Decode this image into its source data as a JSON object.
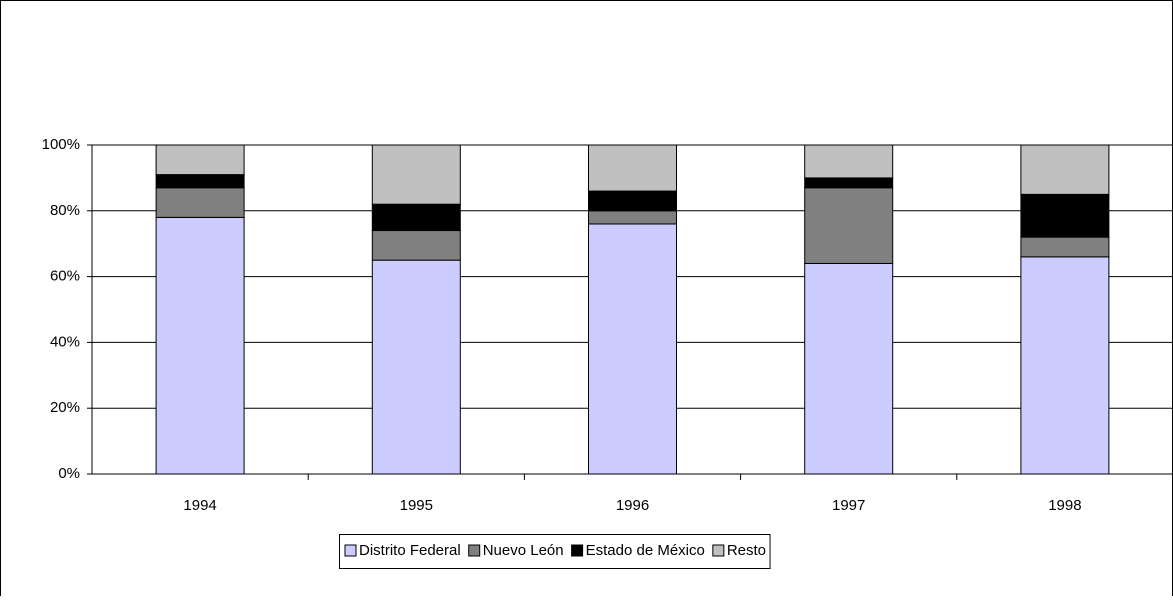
{
  "chart_data": {
    "type": "stacked_bar",
    "categories": [
      "1994",
      "1995",
      "1996",
      "1997",
      "1998"
    ],
    "series": [
      {
        "name": "Distrito Federal",
        "color": "#ccccff",
        "values": [
          78,
          65,
          76,
          64,
          66
        ]
      },
      {
        "name": "Nuevo León",
        "color": "#808080",
        "values": [
          9,
          9,
          4,
          23,
          6
        ]
      },
      {
        "name": "Estado de México",
        "color": "#000000",
        "values": [
          4,
          8,
          6,
          3,
          13
        ]
      },
      {
        "name": "Resto",
        "color": "#c0c0c0",
        "values": [
          9,
          18,
          14,
          10,
          15
        ]
      }
    ],
    "ylim": [
      0,
      100
    ],
    "yticks": [
      {
        "value": 0,
        "label": "0%"
      },
      {
        "value": 20,
        "label": "20%"
      },
      {
        "value": 40,
        "label": "40%"
      },
      {
        "value": 60,
        "label": "60%"
      },
      {
        "value": 80,
        "label": "80%"
      },
      {
        "value": 100,
        "label": "100%"
      }
    ],
    "grid": true
  }
}
